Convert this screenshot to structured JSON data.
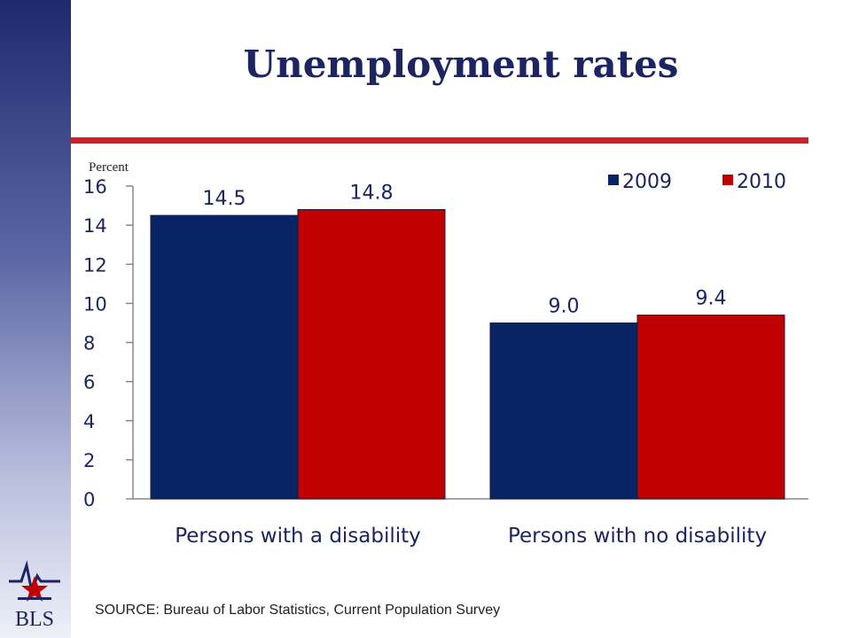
{
  "slide": {
    "title": "Unemployment rates",
    "source": "SOURCE:  Bureau of Labor Statistics, Current Population Survey",
    "logo_text": "BLS"
  },
  "colors": {
    "navy": "#082464",
    "red": "#c00000",
    "rule": "#d0202a"
  },
  "chart_data": {
    "type": "bar",
    "categories": [
      "Persons with a disability",
      "Persons with no disability"
    ],
    "series": [
      {
        "name": "2009",
        "values": [
          14.5,
          9.0
        ],
        "labels": [
          "14.5",
          "9.0"
        ],
        "color": "#082464"
      },
      {
        "name": "2010",
        "values": [
          14.8,
          9.4
        ],
        "labels": [
          "14.8",
          "9.4"
        ],
        "color": "#c00000"
      }
    ],
    "ylabel": "Percent",
    "ylim": [
      0,
      16
    ],
    "yticks": [
      0,
      2,
      4,
      6,
      8,
      10,
      12,
      14,
      16
    ],
    "legend": "top-right",
    "grid": false
  }
}
